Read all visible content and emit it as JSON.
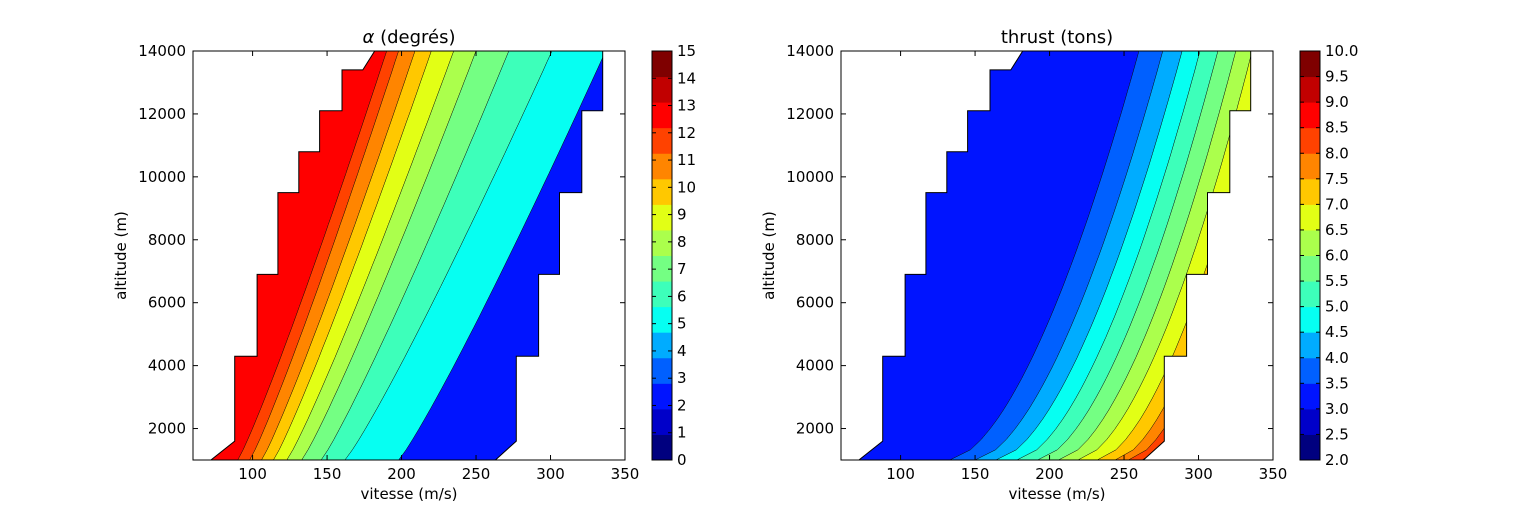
{
  "chart_data": [
    {
      "type": "contour",
      "title_symbol": "α",
      "title_text": " (degrés)",
      "xlabel": "vitesse (m/s)",
      "ylabel": "altitude (m)",
      "xlim": [
        60,
        350
      ],
      "ylim": [
        1000,
        14000
      ],
      "x_ticks": [
        100,
        150,
        200,
        250,
        300,
        350
      ],
      "y_ticks": [
        2000,
        4000,
        6000,
        8000,
        10000,
        12000,
        14000
      ],
      "levels": [
        0,
        1,
        2,
        3,
        4,
        5,
        6,
        7,
        8,
        9,
        10,
        11,
        12,
        13,
        14,
        15
      ],
      "colorbar_ticks": [
        "0",
        "1",
        "2",
        "3",
        "4",
        "5",
        "6",
        "7",
        "8",
        "9",
        "10",
        "11",
        "12",
        "13",
        "14",
        "15"
      ],
      "colorbar_colors": [
        "#00007f",
        "#0000c9",
        "#0014ff",
        "#0060ff",
        "#00acff",
        "#06fff2",
        "#3dffba",
        "#74ff83",
        "#abff4c",
        "#e2ff15",
        "#ffc800",
        "#ff8500",
        "#ff4200",
        "#ff0000",
        "#c10000",
        "#7f0000"
      ],
      "domain_left_v": [
        [
          1000,
          72
        ],
        [
          1600,
          88
        ],
        [
          4300,
          88
        ],
        [
          4300,
          103
        ],
        [
          6900,
          103
        ],
        [
          6900,
          117
        ],
        [
          9500,
          117
        ],
        [
          9500,
          131
        ],
        [
          10800,
          131
        ],
        [
          10800,
          145
        ],
        [
          12100,
          145
        ],
        [
          12100,
          160
        ],
        [
          13400,
          160
        ],
        [
          13400,
          174
        ],
        [
          14000,
          182
        ]
      ],
      "domain_right_v": [
        [
          1000,
          263
        ],
        [
          1600,
          277
        ],
        [
          4300,
          277
        ],
        [
          4300,
          292
        ],
        [
          6900,
          292
        ],
        [
          6900,
          306
        ],
        [
          9500,
          306
        ],
        [
          9500,
          321
        ],
        [
          12100,
          321
        ],
        [
          12100,
          335
        ],
        [
          14000,
          335
        ]
      ],
      "contour_v_at_1000": [
        90,
        98,
        106,
        114,
        123,
        133,
        146,
        162,
        198
      ],
      "contour_v_at_14000": [
        190,
        198,
        209,
        220,
        235,
        250,
        272,
        301,
        337
      ],
      "contour_curvature": 0.9
    },
    {
      "type": "contour",
      "title": "thrust (tons)",
      "xlabel": "vitesse (m/s)",
      "ylabel": "altitude (m)",
      "xlim": [
        60,
        350
      ],
      "ylim": [
        1000,
        14000
      ],
      "x_ticks": [
        100,
        150,
        200,
        250,
        300,
        350
      ],
      "y_ticks": [
        2000,
        4000,
        6000,
        8000,
        10000,
        12000,
        14000
      ],
      "levels": [
        2.0,
        2.5,
        3.0,
        3.5,
        4.0,
        4.5,
        5.0,
        5.5,
        6.0,
        6.5,
        7.0,
        7.5,
        8.0,
        8.5,
        9.0,
        9.5,
        10.0
      ],
      "colorbar_ticks": [
        "2.0",
        "2.5",
        "3.0",
        "3.5",
        "4.0",
        "4.5",
        "5.0",
        "5.5",
        "6.0",
        "6.5",
        "7.0",
        "7.5",
        "8.0",
        "8.5",
        "9.0",
        "9.5",
        "10.0"
      ],
      "colorbar_colors": [
        "#00007f",
        "#0000c9",
        "#0014ff",
        "#0060ff",
        "#00acff",
        "#06fff2",
        "#3dffba",
        "#74ff83",
        "#abff4c",
        "#e2ff15",
        "#ffc800",
        "#ff8500",
        "#ff4200",
        "#ff0000",
        "#c10000",
        "#7f0000"
      ],
      "domain_left_v": [
        [
          1000,
          72
        ],
        [
          1600,
          88
        ],
        [
          4300,
          88
        ],
        [
          4300,
          103
        ],
        [
          6900,
          103
        ],
        [
          6900,
          117
        ],
        [
          9500,
          117
        ],
        [
          9500,
          131
        ],
        [
          10800,
          131
        ],
        [
          10800,
          145
        ],
        [
          12100,
          145
        ],
        [
          12100,
          160
        ],
        [
          13400,
          160
        ],
        [
          13400,
          174
        ],
        [
          14000,
          182
        ]
      ],
      "domain_right_v": [
        [
          1000,
          263
        ],
        [
          1600,
          277
        ],
        [
          4300,
          277
        ],
        [
          4300,
          292
        ],
        [
          6900,
          292
        ],
        [
          6900,
          306
        ],
        [
          9500,
          306
        ],
        [
          9500,
          321
        ],
        [
          12100,
          321
        ],
        [
          12100,
          335
        ],
        [
          14000,
          335
        ]
      ],
      "contour_v_at_1000": [
        133,
        150,
        164,
        178,
        192,
        206,
        219,
        232,
        244,
        253,
        262,
        270
      ],
      "contour_v_at_14000": [
        260,
        276,
        289,
        301,
        313,
        325,
        336,
        347,
        356,
        364,
        371,
        377
      ],
      "contour_curvature": 0.6
    }
  ]
}
